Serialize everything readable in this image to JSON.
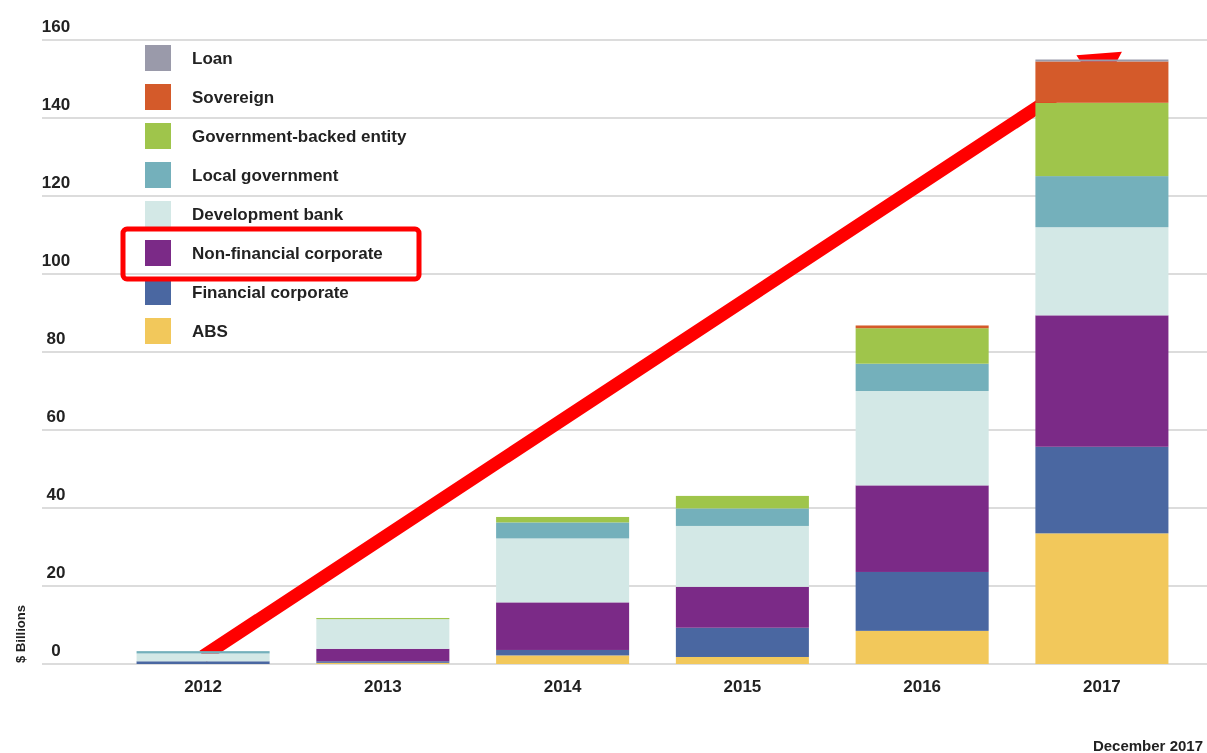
{
  "chart_data": {
    "type": "bar",
    "stacked": true,
    "ylabel": "$ Billions",
    "categories": [
      "2012",
      "2013",
      "2014",
      "2015",
      "2016",
      "2017"
    ],
    "series": [
      {
        "name": "ABS",
        "color": "#f2c85b",
        "values": [
          0,
          0.3,
          2.2,
          1.8,
          8.5,
          33.5
        ]
      },
      {
        "name": "Financial corporate",
        "color": "#4a67a1",
        "values": [
          0.7,
          0.4,
          1.4,
          7.5,
          15.1,
          22.2
        ]
      },
      {
        "name": "Non-financial corporate",
        "color": "#7b2a87",
        "values": [
          0,
          3.2,
          12.2,
          10.5,
          22.2,
          33.7
        ]
      },
      {
        "name": "Development bank",
        "color": "#d3e8e6",
        "values": [
          2,
          7.6,
          16.4,
          15.6,
          24.2,
          22.6
        ]
      },
      {
        "name": "Local government",
        "color": "#74b0bb",
        "values": [
          0.6,
          0,
          4.1,
          4.5,
          7,
          13.1
        ]
      },
      {
        "name": "Government-backed entity",
        "color": "#9fc54b",
        "values": [
          0,
          0.3,
          1.4,
          3.2,
          9.1,
          18.8
        ]
      },
      {
        "name": "Sovereign",
        "color": "#d45a2a",
        "values": [
          0,
          0,
          0,
          0,
          0.7,
          10.6
        ]
      },
      {
        "name": "Loan",
        "color": "#9a9aaa",
        "values": [
          0,
          0,
          0,
          0,
          0,
          0.5
        ]
      }
    ],
    "ylim": [
      0,
      160
    ],
    "yticks": [
      0,
      20,
      40,
      60,
      80,
      100,
      120,
      140,
      160
    ],
    "grid": "y",
    "legend": "top left",
    "annotations": [
      "December 2017"
    ]
  }
}
